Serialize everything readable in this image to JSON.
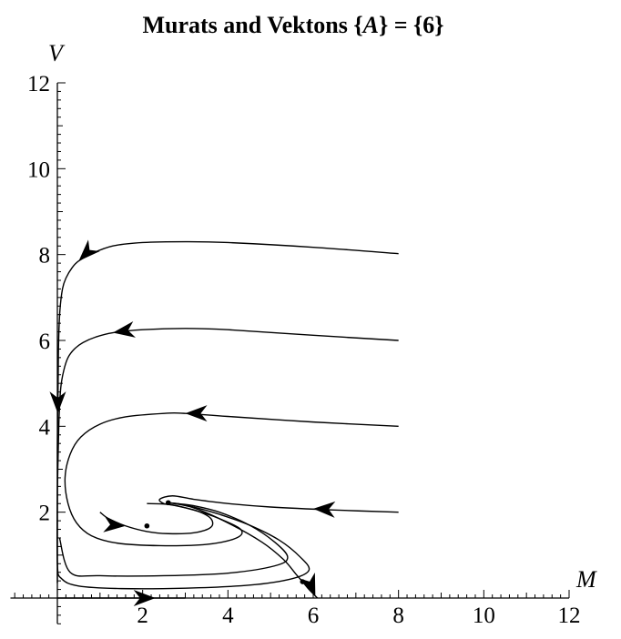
{
  "chart_data": {
    "type": "line",
    "title_prefix": "Murats and Vektons {",
    "title_var": "A",
    "title_suffix": "} = {6}",
    "xlabel": "M",
    "ylabel": "V",
    "xlim": [
      -1.1,
      12
    ],
    "ylim": [
      -0.6,
      12
    ],
    "xticks": [
      2,
      4,
      6,
      8,
      10,
      12
    ],
    "yticks": [
      2,
      4,
      6,
      8,
      10,
      12
    ],
    "grid": false,
    "legend": "none",
    "line_color": "#000000",
    "series": [
      {
        "x": [
          8,
          6,
          4,
          3,
          2,
          1.3,
          0.8,
          0.5,
          0.35,
          0.2,
          0.12,
          0.06,
          0.03,
          0.02,
          0.01,
          0,
          0,
          0,
          0
        ],
        "y": [
          8.02,
          8.17,
          8.28,
          8.3,
          8.28,
          8.2,
          8.02,
          7.85,
          7.7,
          7.45,
          7.2,
          6.7,
          6,
          5.2,
          4.3,
          3.5,
          2.5,
          1.2,
          0.35
        ],
        "arrows": [
          {
            "x": 0.5,
            "y": 7.85
          },
          {
            "x": 0.01,
            "y": 4.3
          }
        ]
      },
      {
        "x": [
          8,
          6,
          4,
          3,
          2,
          1.3,
          0.9,
          0.6,
          0.4,
          0.25,
          0.15,
          0.08,
          0.04,
          0.02,
          0
        ],
        "y": [
          6,
          6.12,
          6.25,
          6.28,
          6.25,
          6.18,
          6.08,
          5.95,
          5.8,
          5.6,
          5.3,
          4.9,
          4.2,
          3.4,
          2.5
        ]
      },
      {
        "x": [
          8,
          6,
          4,
          3,
          2.5,
          1.6,
          1,
          0.55,
          0.3,
          0.18,
          0.25,
          0.45,
          0.8,
          1.4,
          2.4,
          3.5,
          4.2,
          4.3,
          3.8,
          3.2,
          2.6,
          2.1
        ],
        "y": [
          4,
          4.1,
          4.23,
          4.3,
          4.3,
          4.22,
          4.05,
          3.75,
          3.35,
          2.8,
          2.2,
          1.75,
          1.45,
          1.28,
          1.22,
          1.25,
          1.4,
          1.6,
          1.85,
          2.05,
          2.18,
          2.2
        ]
      },
      {
        "x": [
          8,
          6.5,
          5,
          4,
          3.2,
          2.7,
          2.4,
          2.5,
          2.8,
          3.3,
          3.6,
          3.6,
          3.2,
          2.6,
          2.1,
          1.6,
          1.2,
          1
        ],
        "y": [
          2,
          2.05,
          2.12,
          2.2,
          2.3,
          2.38,
          2.3,
          2.2,
          2.15,
          2.02,
          1.85,
          1.65,
          1.52,
          1.5,
          1.55,
          1.68,
          1.85,
          2
        ]
      },
      {
        "x": [
          0,
          0,
          0.1,
          0.5,
          1.5,
          3,
          4.5,
          5.5,
          5.9,
          5.7,
          5.2,
          4.5,
          3.8,
          3.2,
          2.8,
          2.6
        ],
        "y": [
          2.5,
          0.8,
          0.45,
          0.28,
          0.22,
          0.23,
          0.3,
          0.45,
          0.65,
          0.95,
          1.35,
          1.7,
          1.95,
          2.12,
          2.2,
          2.22
        ]
      },
      {
        "x": [
          0.05,
          0.3,
          1,
          2.5,
          4,
          5.1,
          5.4,
          5.1,
          4.5,
          3.8,
          3.2,
          2.8,
          2.6
        ],
        "y": [
          1.4,
          0.6,
          0.52,
          0.52,
          0.58,
          0.75,
          0.95,
          1.3,
          1.7,
          2,
          2.15,
          2.2,
          2.22
        ]
      },
      {
        "x": [
          2.6,
          3.2,
          4,
          4.8,
          5.3,
          5.6,
          5.75,
          5.9,
          6.1
        ],
        "y": [
          2.22,
          2.1,
          1.75,
          1.3,
          0.9,
          0.55,
          0.38,
          0.2,
          0
        ]
      },
      {
        "x": [
          0,
          1,
          2,
          2.5,
          3
        ],
        "y": [
          0,
          0,
          0,
          0,
          0
        ]
      }
    ],
    "arrows": [
      {
        "x": 0.5,
        "y": 7.85,
        "dx": -1,
        "dy": -1
      },
      {
        "x": 0.01,
        "y": 4.3,
        "dx": 0,
        "dy": -1
      },
      {
        "x": 1.3,
        "y": 6.18,
        "dx": -1,
        "dy": -0.15
      },
      {
        "x": 3,
        "y": 4.3,
        "dx": -1,
        "dy": 0
      },
      {
        "x": 6,
        "y": 2.08,
        "dx": -1,
        "dy": 0.04
      },
      {
        "x": 1.6,
        "y": 1.68,
        "dx": 1,
        "dy": -0.08
      },
      {
        "x": 6.05,
        "y": 0.05,
        "dx": 0.4,
        "dy": -1
      },
      {
        "x": 2.3,
        "y": 0,
        "dx": 1,
        "dy": 0
      }
    ],
    "points": [
      {
        "x": 2.1,
        "y": 1.68
      },
      {
        "x": 2.6,
        "y": 2.22
      },
      {
        "x": 5.75,
        "y": 0.38
      }
    ]
  }
}
